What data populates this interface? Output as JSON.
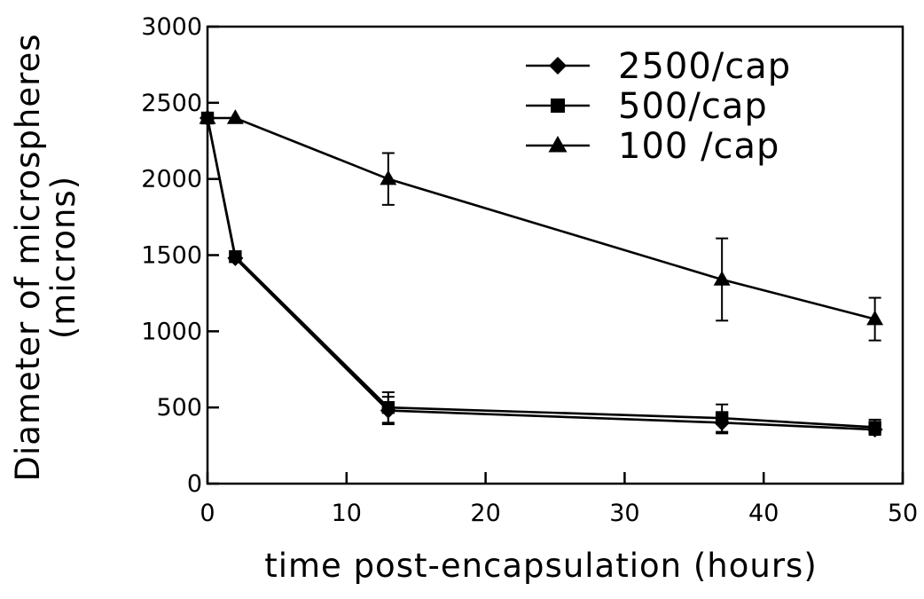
{
  "chart_data": {
    "type": "line",
    "title": "",
    "xlabel": "time post-encapsulation (hours)",
    "ylabel": "Diameter of microspheres",
    "ylabel_unit": "(microns)",
    "xlim": [
      0,
      50
    ],
    "ylim": [
      0,
      3000
    ],
    "x_ticks": [
      0,
      10,
      20,
      30,
      40,
      50
    ],
    "y_ticks": [
      0,
      500,
      1000,
      1500,
      2000,
      2500,
      3000
    ],
    "x_tick_labels": [
      "0",
      "10",
      "20",
      "30",
      "40",
      "50"
    ],
    "y_tick_labels": [
      "0",
      "500",
      "1000",
      "1500",
      "2000",
      "2500",
      "3000"
    ],
    "grid": false,
    "legend_position": "top-right",
    "series": [
      {
        "name": "2500/cap",
        "marker": "diamond",
        "x": [
          0,
          2,
          13,
          37,
          48
        ],
        "y": [
          2400,
          1480,
          480,
          400,
          355
        ],
        "err": [
          0,
          0,
          90,
          70,
          30
        ]
      },
      {
        "name": "500/cap",
        "marker": "square",
        "x": [
          0,
          2,
          13,
          37,
          48
        ],
        "y": [
          2400,
          1490,
          500,
          430,
          370
        ],
        "err": [
          0,
          0,
          100,
          90,
          50
        ]
      },
      {
        "name": "100 /cap",
        "marker": "triangle",
        "x": [
          0,
          2,
          13,
          37,
          48
        ],
        "y": [
          2400,
          2400,
          2000,
          1340,
          1080
        ],
        "err": [
          0,
          0,
          170,
          270,
          140
        ]
      }
    ]
  }
}
